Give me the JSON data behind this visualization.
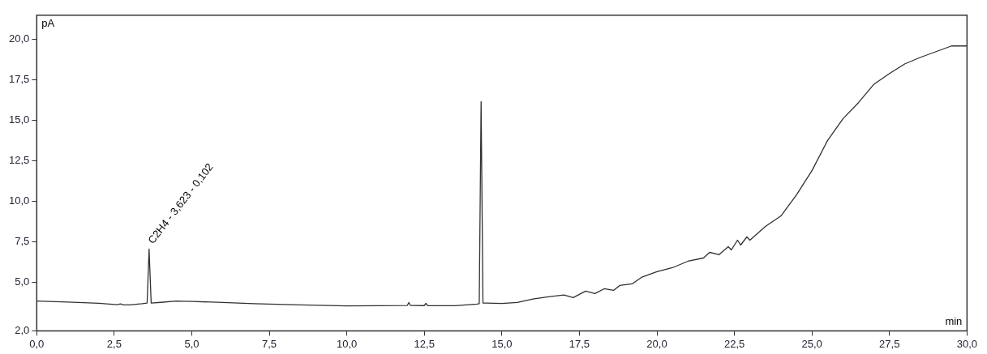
{
  "chart_data": {
    "type": "line",
    "xlabel": "min",
    "ylabel": "pA",
    "x": [
      0,
      1.0,
      2.0,
      2.6,
      2.7,
      2.8,
      3.0,
      3.4,
      3.56,
      3.623,
      3.69,
      4.0,
      4.5,
      5.0,
      6.0,
      7.0,
      7.5,
      8.5,
      10.0,
      11.0,
      11.95,
      12.0,
      12.05,
      12.5,
      12.55,
      12.6,
      13.5,
      14.2,
      14.27,
      14.33,
      14.39,
      14.5,
      15.0,
      15.5,
      16.0,
      16.5,
      17.0,
      17.3,
      17.7,
      18.0,
      18.3,
      18.6,
      18.8,
      19.2,
      19.5,
      20.0,
      20.5,
      21.0,
      21.5,
      21.7,
      22.0,
      22.3,
      22.4,
      22.6,
      22.7,
      22.9,
      23.0,
      23.5,
      24.0,
      24.5,
      25.0,
      25.5,
      26.0,
      26.5,
      27.0,
      27.5,
      28.0,
      28.5,
      29.0,
      29.5,
      30.0
    ],
    "values": [
      3.84,
      3.78,
      3.7,
      3.62,
      3.66,
      3.6,
      3.6,
      3.68,
      3.72,
      7.05,
      3.72,
      3.76,
      3.84,
      3.82,
      3.75,
      3.68,
      3.65,
      3.6,
      3.54,
      3.55,
      3.57,
      3.75,
      3.57,
      3.56,
      3.7,
      3.56,
      3.55,
      3.65,
      3.68,
      16.16,
      3.72,
      3.72,
      3.69,
      3.75,
      3.97,
      4.1,
      4.22,
      4.05,
      4.45,
      4.3,
      4.6,
      4.5,
      4.8,
      4.9,
      5.3,
      5.65,
      5.9,
      6.3,
      6.5,
      6.85,
      6.7,
      7.2,
      7.0,
      7.6,
      7.3,
      7.8,
      7.6,
      8.45,
      9.1,
      10.4,
      11.9,
      13.75,
      15.1,
      16.1,
      17.24,
      17.9,
      18.5,
      18.9,
      19.25,
      19.6,
      19.6
    ],
    "color": "#303030",
    "marker": "none",
    "xlim": [
      0,
      30
    ],
    "ylim": [
      2,
      21.5
    ],
    "xticks": [
      {
        "value": 0,
        "label": "0,0"
      },
      {
        "value": 2.5,
        "label": "2,5"
      },
      {
        "value": 5,
        "label": "5,0"
      },
      {
        "value": 7.5,
        "label": "7,5"
      },
      {
        "value": 10,
        "label": "10,0"
      },
      {
        "value": 12.5,
        "label": "12,5"
      },
      {
        "value": 15,
        "label": "15,0"
      },
      {
        "value": 17.5,
        "label": "17,5"
      },
      {
        "value": 20,
        "label": "20,0"
      },
      {
        "value": 22.5,
        "label": "22,5"
      },
      {
        "value": 25,
        "label": "25,0"
      },
      {
        "value": 27.5,
        "label": "27,5"
      },
      {
        "value": 30,
        "label": "30,0"
      }
    ],
    "yticks": [
      {
        "value": 2,
        "label": "2,0"
      },
      {
        "value": 5,
        "label": "5,0"
      },
      {
        "value": 7.5,
        "label": "7,5"
      },
      {
        "value": 10,
        "label": "10,0"
      },
      {
        "value": 12.5,
        "label": "12,5"
      },
      {
        "value": 15,
        "label": "15,0"
      },
      {
        "value": 17.5,
        "label": "17,5"
      },
      {
        "value": 20,
        "label": "20,0"
      }
    ],
    "annotations": [
      {
        "text": "C2H4 - 3,623 - 0,102",
        "x": 3.623,
        "y": 7.05
      }
    ],
    "grid": false,
    "legend": false
  }
}
